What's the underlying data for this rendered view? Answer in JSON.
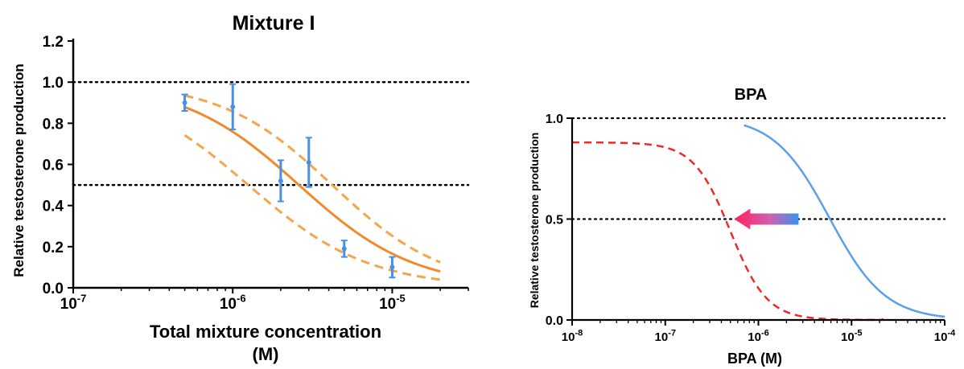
{
  "colors": {
    "axis": "#000000",
    "fit_line": "#f08a2c",
    "ci_band": "#f5a54a",
    "data_points": "#4a90e2",
    "bpa_alone": "#5aa0ec",
    "bpa_mixture": "#ec2a2a",
    "reference_line": "#000000"
  },
  "chart_data": [
    {
      "type": "line",
      "title": "Mixture I",
      "xlabel_line1": "Total mixture concentration",
      "xlabel_line2": "(M)",
      "ylabel": "Relative testosterone production",
      "x_scale": "log",
      "xlim": [
        1e-07,
        3e-05
      ],
      "ylim": [
        0,
        1.2
      ],
      "x_ticks": [
        {
          "value": 1e-07,
          "base": "10",
          "exp": "-7"
        },
        {
          "value": 1e-06,
          "base": "10",
          "exp": "-6"
        },
        {
          "value": 1e-05,
          "base": "10",
          "exp": "-5"
        }
      ],
      "y_ticks": [
        {
          "value": 0.0,
          "label": "0.0"
        },
        {
          "value": 0.2,
          "label": "0.2"
        },
        {
          "value": 0.4,
          "label": "0.4"
        },
        {
          "value": 0.6,
          "label": "0.6"
        },
        {
          "value": 0.8,
          "label": "0.8"
        },
        {
          "value": 1.0,
          "label": "1.0"
        },
        {
          "value": 1.2,
          "label": "1.2"
        }
      ],
      "reference_lines": [
        1.0,
        0.5
      ],
      "fit": {
        "top": 1.0,
        "bottom": 0.0,
        "ec50": 2.6e-06,
        "hill": 1.2,
        "x_range": [
          5e-07,
          2e-05
        ]
      },
      "ci_upper": {
        "top": 1.0,
        "bottom": 0.0,
        "ec50": 4.2e-06,
        "hill": 1.25,
        "x_range": [
          5e-07,
          2e-05
        ]
      },
      "ci_lower": {
        "top": 1.0,
        "bottom": 0.0,
        "ec50": 1.25e-06,
        "hill": 1.15,
        "x_range": [
          5e-07,
          2e-05
        ]
      },
      "points": [
        {
          "x": 5e-07,
          "y": 0.9,
          "err": 0.04
        },
        {
          "x": 1e-06,
          "y": 0.88,
          "err": 0.11
        },
        {
          "x": 2e-06,
          "y": 0.52,
          "err": 0.1
        },
        {
          "x": 3e-06,
          "y": 0.61,
          "err": 0.12
        },
        {
          "x": 5e-06,
          "y": 0.19,
          "err": 0.04
        },
        {
          "x": 1e-05,
          "y": 0.1,
          "err": 0.05
        }
      ]
    },
    {
      "type": "line",
      "title": "BPA",
      "xlabel": "BPA (M)",
      "ylabel": "Relative testosterone production",
      "x_scale": "log",
      "xlim": [
        1e-08,
        0.0001
      ],
      "ylim": [
        0,
        1.0
      ],
      "x_ticks": [
        {
          "value": 1e-08,
          "base": "10",
          "exp": "-8"
        },
        {
          "value": 1e-07,
          "base": "10",
          "exp": "-7"
        },
        {
          "value": 1e-06,
          "base": "10",
          "exp": "-6"
        },
        {
          "value": 1e-05,
          "base": "10",
          "exp": "-5"
        },
        {
          "value": 0.0001,
          "base": "10",
          "exp": "-4"
        }
      ],
      "y_ticks": [
        {
          "value": 0.0,
          "label": "0.0"
        },
        {
          "value": 0.5,
          "label": "0.5"
        },
        {
          "value": 1.0,
          "label": "1.0"
        }
      ],
      "reference_lines": [
        1.0,
        0.5
      ],
      "curves": [
        {
          "style": "solid",
          "top": 1.01,
          "bottom": 0.0,
          "ec50": 5.8e-06,
          "hill": 1.45,
          "x_range": [
            7e-07,
            0.0001
          ]
        },
        {
          "style": "dashed",
          "top": 0.88,
          "bottom": 0.0,
          "ec50": 5e-07,
          "hill": 2.2,
          "x_range": [
            1e-08,
            2.2e-05
          ],
          "y_end": 0.005
        }
      ],
      "arrow": {
        "from_x": 2.7e-06,
        "to_x": 5.5e-07,
        "y": 0.5
      }
    }
  ]
}
